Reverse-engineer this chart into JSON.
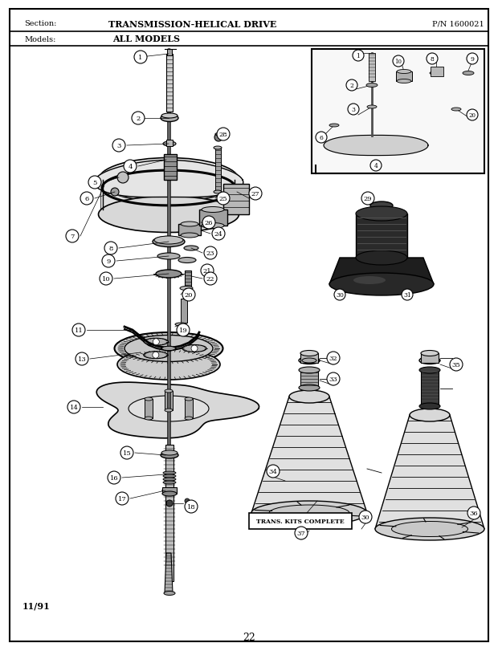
{
  "title_section": "Section:",
  "title_text": "TRANSMISSION-HELICAL DRIVE",
  "pn_text": "P/N 1600021",
  "models_label": "Models:",
  "models_text": "ALL MODELS",
  "date_text": "11/91",
  "page_number": "22",
  "bg_color": "#ffffff",
  "figsize": [
    6.2,
    8.12
  ],
  "dpi": 100
}
